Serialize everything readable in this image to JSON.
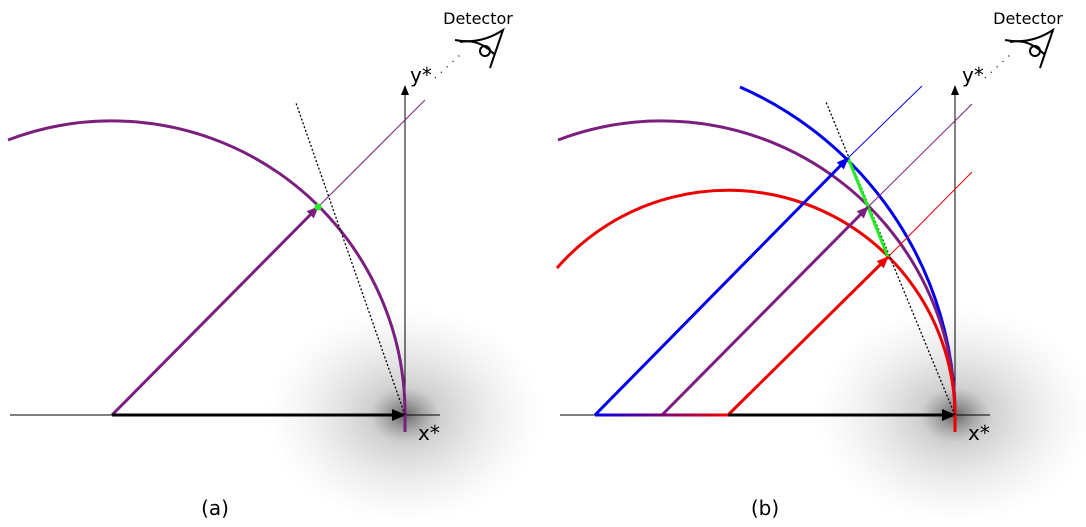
{
  "panels": [
    {
      "detector": "Detector",
      "y_axis": "y*",
      "x_axis": "x*",
      "caption": "(a)"
    },
    {
      "detector": "Detector",
      "y_axis": "y*",
      "x_axis": "x*",
      "caption": "(b)"
    }
  ]
}
